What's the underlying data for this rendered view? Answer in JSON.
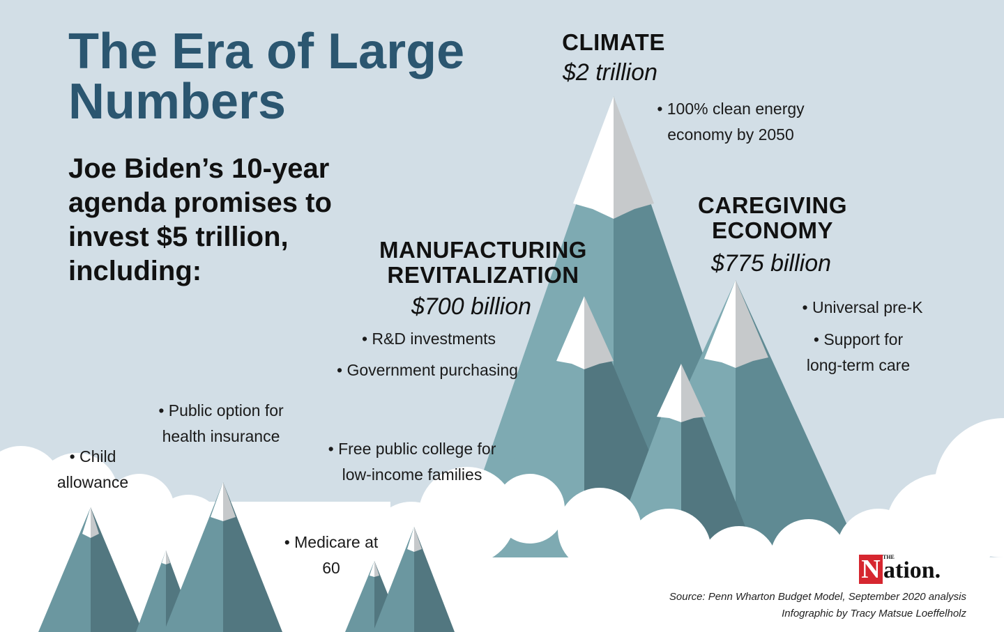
{
  "title": "The Era of Large Numbers",
  "subtitle": "Joe Biden’s 10-year agenda promises to invest $5 trillion, including:",
  "climate": {
    "heading": "CLIMATE",
    "amount": "$2 trillion",
    "bullets": [
      "• 100% clean energy economy by 2050"
    ]
  },
  "caregiving": {
    "heading_line1": "CAREGIVING",
    "heading_line2": "ECONOMY",
    "amount": "$775 billion",
    "bullets": [
      "• Universal pre-K",
      "• Support for long-term care"
    ]
  },
  "manufacturing": {
    "heading_line1": "MANUFACTURING",
    "heading_line2": "REVITALIZATION",
    "amount": "$700 billion",
    "bullets": [
      "• R&D investments",
      "• Government purchasing"
    ]
  },
  "other_items": {
    "public_option": "• Public option for health insurance",
    "child_allowance": "• Child allowance",
    "free_college": "• Free public college for low-income families",
    "medicare": "• Medicare at 60"
  },
  "logo": {
    "the": "THE",
    "n": "N",
    "rest": "ation."
  },
  "source": "Source: Penn Wharton Budget Model, September 2020 analysis",
  "credit": "Infographic by Tracy Matsue Loeffelholz",
  "colors": {
    "background": "#d2dee6",
    "title": "#2b5670",
    "mountain_light": "#7eaab2",
    "mountain_dark": "#527780",
    "snow": "#ffffff",
    "snow_shadow": "#c6c9cb",
    "logo_red": "#d6262f"
  }
}
